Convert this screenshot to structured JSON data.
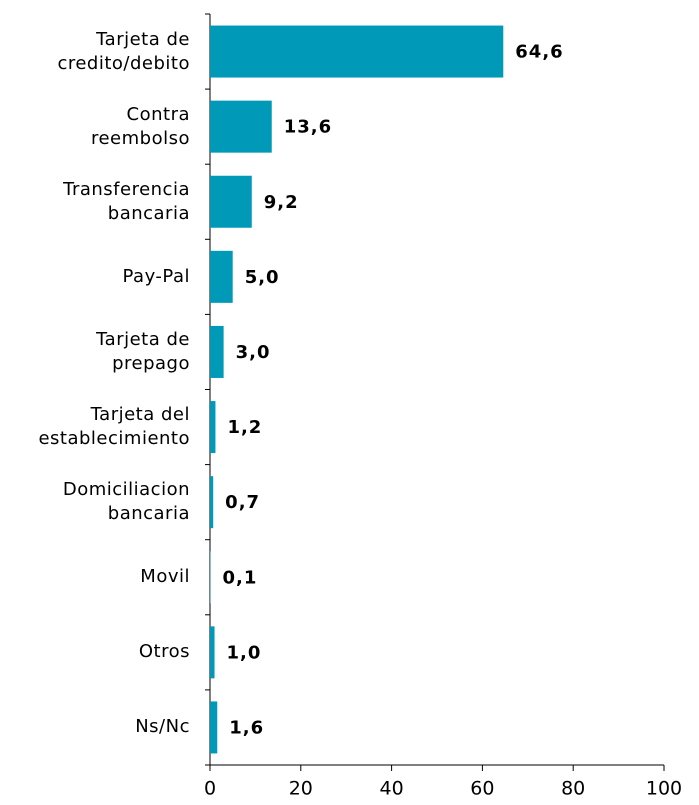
{
  "chart_data": {
    "type": "hbar",
    "categories": [
      "Tarjeta de\ncredito/debito",
      "Contra\nreembolso",
      "Transferencia\nbancaria",
      "Pay-Pal",
      "Tarjeta de\nprepago",
      "Tarjeta del\nestablecimiento",
      "Domiciliacion\nbancaria",
      "Movil",
      "Otros",
      "Ns/Nc"
    ],
    "values": [
      64.6,
      13.6,
      9.2,
      5.0,
      3.0,
      1.2,
      0.7,
      0.1,
      1.0,
      1.6
    ],
    "value_labels": [
      "64,6",
      "13,6",
      "9,2",
      "5,0",
      "3,0",
      "1,2",
      "0,7",
      "0,1",
      "1,0",
      "1,6"
    ],
    "color": "#0099b8",
    "xlim": [
      0,
      100
    ],
    "xticks": [
      0,
      20,
      40,
      60,
      80,
      100
    ]
  }
}
